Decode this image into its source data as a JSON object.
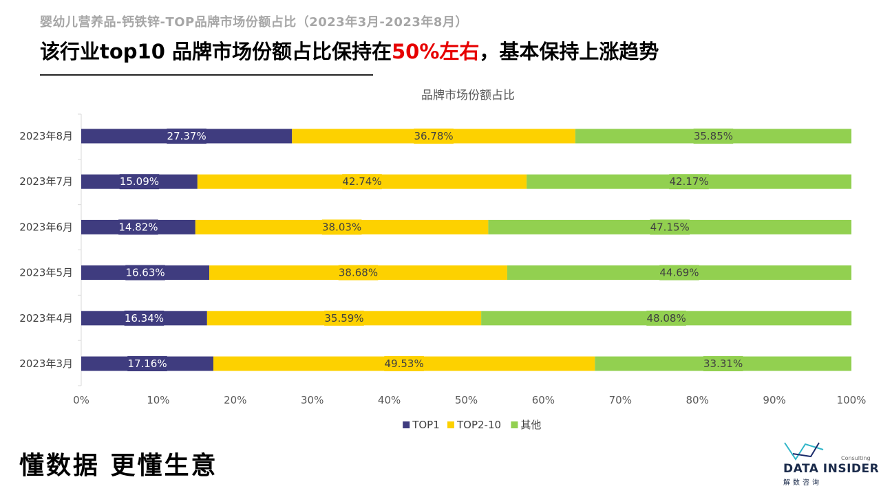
{
  "header": {
    "subtitle": "婴幼儿营养品-钙铁锌-TOP品牌市场份额占比（2023年3月-2023年8月）",
    "headline_pre": "该行业top10 品牌市场份额占比保持在",
    "headline_accent": "50%左右",
    "headline_post": "，基本保持上涨趋势"
  },
  "chart_data": {
    "type": "bar",
    "orientation": "horizontal",
    "stacked": "percent",
    "title": "品牌市场份额占比",
    "categories": [
      "2023年8月",
      "2023年7月",
      "2023年6月",
      "2023年5月",
      "2023年4月",
      "2023年3月"
    ],
    "series": [
      {
        "name": "TOP1",
        "color": "#3f3c7f",
        "values": [
          27.37,
          15.09,
          14.82,
          16.63,
          16.34,
          17.16
        ]
      },
      {
        "name": "TOP2-10",
        "color": "#fdd100",
        "values": [
          36.78,
          42.74,
          38.03,
          38.68,
          35.59,
          49.53
        ]
      },
      {
        "name": "其他",
        "color": "#92d050",
        "values": [
          35.85,
          42.17,
          47.15,
          44.69,
          48.08,
          33.31
        ]
      }
    ],
    "xlim": [
      0,
      100
    ],
    "x_ticks": [
      "0%",
      "10%",
      "20%",
      "30%",
      "40%",
      "50%",
      "60%",
      "70%",
      "80%",
      "90%",
      "100%"
    ],
    "legend_position": "bottom"
  },
  "footer": {
    "slogan": "懂数据 更懂生意",
    "logo_small": "Consulting",
    "logo_text": "DATA INSIDER",
    "logo_cn": "解数咨询"
  }
}
